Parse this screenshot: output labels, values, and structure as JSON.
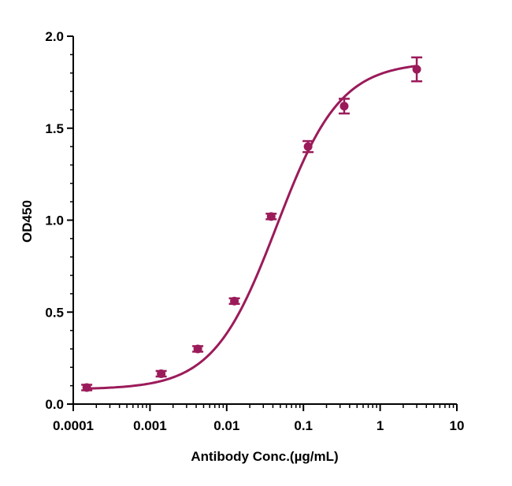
{
  "chart_data": {
    "type": "scatter",
    "xlabel": "Antibody Conc.(µg/mL)",
    "ylabel": "OD450",
    "x_scale": "log",
    "xlim": [
      0.0001,
      10
    ],
    "ylim": [
      0.0,
      2.0
    ],
    "x_ticks": [
      "0.0001",
      "0.001",
      "0.01",
      "0.1",
      "1",
      "10"
    ],
    "y_ticks": [
      "0.0",
      "0.5",
      "1.0",
      "1.5",
      "2.0"
    ],
    "grid": false,
    "color": "#9b1b5a",
    "series": [
      {
        "x": [
          0.00015,
          0.0014,
          0.0042,
          0.0126,
          0.038,
          0.115,
          0.34,
          3.0
        ],
        "y": [
          0.09,
          0.165,
          0.3,
          0.56,
          1.02,
          1.4,
          1.62,
          1.82
        ],
        "error": [
          0.015,
          0.015,
          0.015,
          0.015,
          0.015,
          0.03,
          0.04,
          0.065
        ],
        "fit": "4PL sigmoid curve"
      }
    ]
  }
}
